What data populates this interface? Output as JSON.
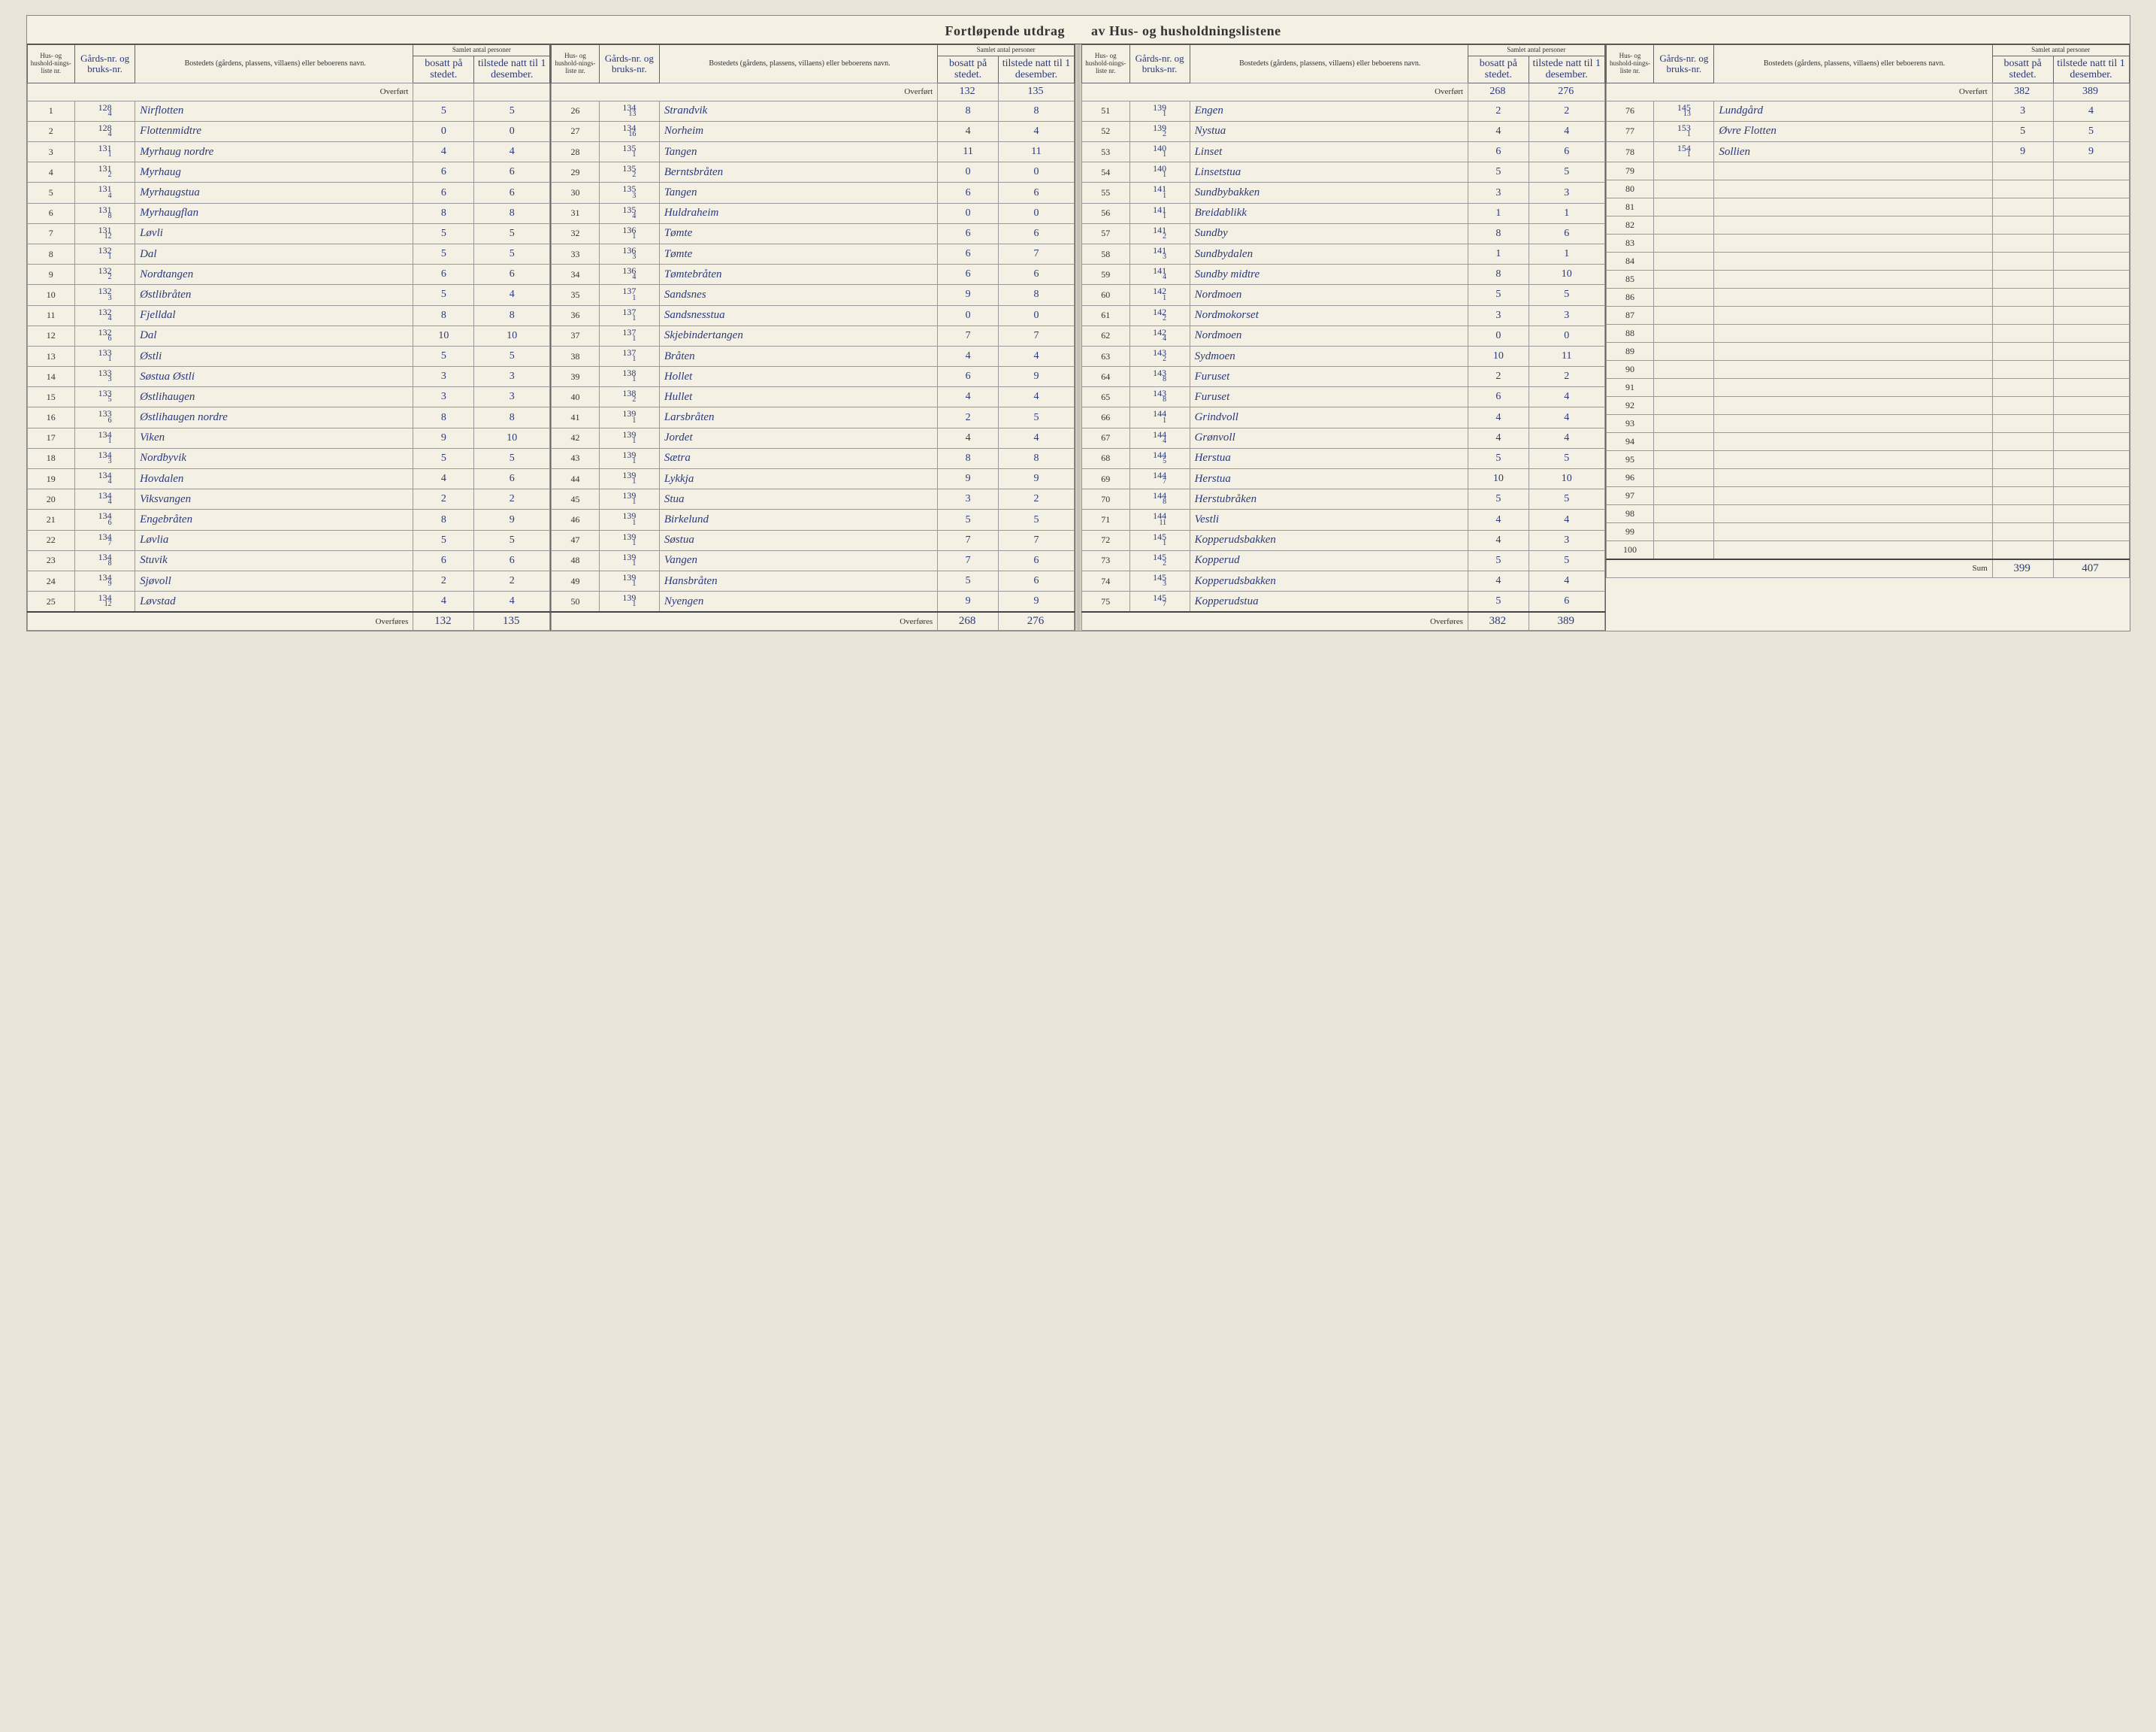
{
  "title_left": "Fortløpende utdrag",
  "title_right": "av Hus- og husholdningslistene",
  "headers": {
    "liste": "Hus- og hushold-nings-liste nr.",
    "gard": "Gårds-nr. og bruks-nr.",
    "bosted": "Bostedets (gårdens, plassens, villaens) eller beboerens navn.",
    "antal_group": "Samlet antal personer",
    "bosatt": "bosatt på stedet.",
    "tilstede": "tilstede natt til 1 desember."
  },
  "overfort_label": "Overført",
  "overfores_label": "Overføres",
  "sum_label": "Sum",
  "sections": [
    {
      "overfort": {
        "bosatt": "",
        "tilstede": ""
      },
      "rows": [
        {
          "n": "1",
          "g": "128",
          "b": "4",
          "name": "Nirflotten",
          "bo": "5",
          "ti": "5"
        },
        {
          "n": "2",
          "g": "128",
          "b": "4",
          "name": "Flottenmidtre",
          "bo": "0",
          "ti": "0"
        },
        {
          "n": "3",
          "g": "131",
          "b": "1",
          "name": "Myrhaug nordre",
          "bo": "4",
          "ti": "4"
        },
        {
          "n": "4",
          "g": "131",
          "b": "2",
          "name": "Myrhaug",
          "bo": "6",
          "ti": "6"
        },
        {
          "n": "5",
          "g": "131",
          "b": "4",
          "name": "Myrhaugstua",
          "bo": "6",
          "ti": "6"
        },
        {
          "n": "6",
          "g": "131",
          "b": "8",
          "name": "Myrhaugflan",
          "bo": "8",
          "ti": "8"
        },
        {
          "n": "7",
          "g": "131",
          "b": "12",
          "name": "Løvli",
          "bo": "5",
          "ti": "5"
        },
        {
          "n": "8",
          "g": "132",
          "b": "1",
          "name": "Dal",
          "bo": "5",
          "ti": "5"
        },
        {
          "n": "9",
          "g": "132",
          "b": "2",
          "name": "Nordtangen",
          "bo": "6",
          "ti": "6"
        },
        {
          "n": "10",
          "g": "132",
          "b": "3",
          "name": "Østlibråten",
          "bo": "5",
          "ti": "4"
        },
        {
          "n": "11",
          "g": "132",
          "b": "4",
          "name": "Fjelldal",
          "bo": "8",
          "ti": "8"
        },
        {
          "n": "12",
          "g": "132",
          "b": "6",
          "name": "Dal",
          "bo": "10",
          "ti": "10"
        },
        {
          "n": "13",
          "g": "133",
          "b": "1",
          "name": "Østli",
          "bo": "5",
          "ti": "5"
        },
        {
          "n": "14",
          "g": "133",
          "b": "3",
          "name": "Søstua Østli",
          "bo": "3",
          "ti": "3"
        },
        {
          "n": "15",
          "g": "133",
          "b": "5",
          "name": "Østlihaugen",
          "bo": "3",
          "ti": "3"
        },
        {
          "n": "16",
          "g": "133",
          "b": "6",
          "name": "Østlihaugen nordre",
          "bo": "8",
          "ti": "8"
        },
        {
          "n": "17",
          "g": "134",
          "b": "1",
          "name": "Viken",
          "bo": "9",
          "ti": "10"
        },
        {
          "n": "18",
          "g": "134",
          "b": "3",
          "name": "Nordbyvik",
          "bo": "5",
          "ti": "5"
        },
        {
          "n": "19",
          "g": "134",
          "b": "4",
          "name": "Hovdalen",
          "bo": "4",
          "ti": "6"
        },
        {
          "n": "20",
          "g": "134",
          "b": "4",
          "name": "Viksvangen",
          "bo": "2",
          "ti": "2"
        },
        {
          "n": "21",
          "g": "134",
          "b": "6",
          "name": "Engebråten",
          "bo": "8",
          "ti": "9"
        },
        {
          "n": "22",
          "g": "134",
          "b": "7",
          "name": "Løvlia",
          "bo": "5",
          "ti": "5"
        },
        {
          "n": "23",
          "g": "134",
          "b": "8",
          "name": "Stuvik",
          "bo": "6",
          "ti": "6"
        },
        {
          "n": "24",
          "g": "134",
          "b": "9",
          "name": "Sjøvoll",
          "bo": "2",
          "ti": "2"
        },
        {
          "n": "25",
          "g": "134",
          "b": "12",
          "name": "Løvstad",
          "bo": "4",
          "ti": "4"
        }
      ],
      "total": {
        "label": "Overføres",
        "bosatt": "132",
        "tilstede": "135"
      }
    },
    {
      "overfort": {
        "bosatt": "132",
        "tilstede": "135"
      },
      "rows": [
        {
          "n": "26",
          "g": "134",
          "b": "13",
          "name": "Strandvik",
          "bo": "8",
          "ti": "8"
        },
        {
          "n": "27",
          "g": "134",
          "b": "16",
          "name": "Norheim",
          "bo": "4",
          "ti": "4"
        },
        {
          "n": "28",
          "g": "135",
          "b": "1",
          "name": "Tangen",
          "bo": "11",
          "ti": "11"
        },
        {
          "n": "29",
          "g": "135",
          "b": "2",
          "name": "Berntsbråten",
          "bo": "0",
          "ti": "0"
        },
        {
          "n": "30",
          "g": "135",
          "b": "3",
          "name": "Tangen",
          "bo": "6",
          "ti": "6"
        },
        {
          "n": "31",
          "g": "135",
          "b": "4",
          "name": "Huldraheim",
          "bo": "0",
          "ti": "0"
        },
        {
          "n": "32",
          "g": "136",
          "b": "1",
          "name": "Tømte",
          "bo": "6",
          "ti": "6"
        },
        {
          "n": "33",
          "g": "136",
          "b": "3",
          "name": "Tømte",
          "bo": "6",
          "ti": "7"
        },
        {
          "n": "34",
          "g": "136",
          "b": "4",
          "name": "Tømtebråten",
          "bo": "6",
          "ti": "6"
        },
        {
          "n": "35",
          "g": "137",
          "b": "1",
          "name": "Sandsnes",
          "bo": "9",
          "ti": "8"
        },
        {
          "n": "36",
          "g": "137",
          "b": "1",
          "name": "Sandsnesstua",
          "bo": "0",
          "ti": "0"
        },
        {
          "n": "37",
          "g": "137",
          "b": "1",
          "name": "Skjebindertangen",
          "bo": "7",
          "ti": "7"
        },
        {
          "n": "38",
          "g": "137",
          "b": "1",
          "name": "Bråten",
          "bo": "4",
          "ti": "4"
        },
        {
          "n": "39",
          "g": "138",
          "b": "1",
          "name": "Hollet",
          "bo": "6",
          "ti": "9"
        },
        {
          "n": "40",
          "g": "138",
          "b": "2",
          "name": "Hullet",
          "bo": "4",
          "ti": "4"
        },
        {
          "n": "41",
          "g": "139",
          "b": "1",
          "name": "Larsbråten",
          "bo": "2",
          "ti": "5"
        },
        {
          "n": "42",
          "g": "139",
          "b": "1",
          "name": "Jordet",
          "bo": "4",
          "ti": "4"
        },
        {
          "n": "43",
          "g": "139",
          "b": "1",
          "name": "Sætra",
          "bo": "8",
          "ti": "8"
        },
        {
          "n": "44",
          "g": "139",
          "b": "1",
          "name": "Lykkja",
          "bo": "9",
          "ti": "9"
        },
        {
          "n": "45",
          "g": "139",
          "b": "1",
          "name": "Stua",
          "bo": "3",
          "ti": "2"
        },
        {
          "n": "46",
          "g": "139",
          "b": "1",
          "name": "Birkelund",
          "bo": "5",
          "ti": "5"
        },
        {
          "n": "47",
          "g": "139",
          "b": "1",
          "name": "Søstua",
          "bo": "7",
          "ti": "7"
        },
        {
          "n": "48",
          "g": "139",
          "b": "1",
          "name": "Vangen",
          "bo": "7",
          "ti": "6"
        },
        {
          "n": "49",
          "g": "139",
          "b": "1",
          "name": "Hansbråten",
          "bo": "5",
          "ti": "6"
        },
        {
          "n": "50",
          "g": "139",
          "b": "1",
          "name": "Nyengen",
          "bo": "9",
          "ti": "9"
        }
      ],
      "total": {
        "label": "Overføres",
        "bosatt": "268",
        "tilstede": "276"
      }
    },
    {
      "overfort": {
        "bosatt": "268",
        "tilstede": "276"
      },
      "rows": [
        {
          "n": "51",
          "g": "139",
          "b": "1",
          "name": "Engen",
          "bo": "2",
          "ti": "2"
        },
        {
          "n": "52",
          "g": "139",
          "b": "2",
          "name": "Nystua",
          "bo": "4",
          "ti": "4"
        },
        {
          "n": "53",
          "g": "140",
          "b": "1",
          "name": "Linset",
          "bo": "6",
          "ti": "6"
        },
        {
          "n": "54",
          "g": "140",
          "b": "1",
          "name": "Linsetstua",
          "bo": "5",
          "ti": "5"
        },
        {
          "n": "55",
          "g": "141",
          "b": "1",
          "name": "Sundbybakken",
          "bo": "3",
          "ti": "3"
        },
        {
          "n": "56",
          "g": "141",
          "b": "1",
          "name": "Breidablikk",
          "bo": "1",
          "ti": "1"
        },
        {
          "n": "57",
          "g": "141",
          "b": "2",
          "name": "Sundby",
          "bo": "8",
          "ti": "6"
        },
        {
          "n": "58",
          "g": "141",
          "b": "3",
          "name": "Sundbydalen",
          "bo": "1",
          "ti": "1"
        },
        {
          "n": "59",
          "g": "141",
          "b": "4",
          "name": "Sundby midtre",
          "bo": "8",
          "ti": "10"
        },
        {
          "n": "60",
          "g": "142",
          "b": "1",
          "name": "Nordmoen",
          "bo": "5",
          "ti": "5"
        },
        {
          "n": "61",
          "g": "142",
          "b": "2",
          "name": "Nordmokorset",
          "bo": "3",
          "ti": "3"
        },
        {
          "n": "62",
          "g": "142",
          "b": "4",
          "name": "Nordmoen",
          "bo": "0",
          "ti": "0"
        },
        {
          "n": "63",
          "g": "143",
          "b": "2",
          "name": "Sydmoen",
          "bo": "10",
          "ti": "11"
        },
        {
          "n": "64",
          "g": "143",
          "b": "8",
          "name": "Furuset",
          "bo": "2",
          "ti": "2"
        },
        {
          "n": "65",
          "g": "143",
          "b": "8",
          "name": "Furuset",
          "bo": "6",
          "ti": "4"
        },
        {
          "n": "66",
          "g": "144",
          "b": "1",
          "name": "Grindvoll",
          "bo": "4",
          "ti": "4"
        },
        {
          "n": "67",
          "g": "144",
          "b": "4",
          "name": "Grønvoll",
          "bo": "4",
          "ti": "4"
        },
        {
          "n": "68",
          "g": "144",
          "b": "5",
          "name": "Herstua",
          "bo": "5",
          "ti": "5"
        },
        {
          "n": "69",
          "g": "144",
          "b": "7",
          "name": "Herstua",
          "bo": "10",
          "ti": "10"
        },
        {
          "n": "70",
          "g": "144",
          "b": "8",
          "name": "Herstubråken",
          "bo": "5",
          "ti": "5"
        },
        {
          "n": "71",
          "g": "144",
          "b": "11",
          "name": "Vestli",
          "bo": "4",
          "ti": "4"
        },
        {
          "n": "72",
          "g": "145",
          "b": "1",
          "name": "Kopperudsbakken",
          "bo": "4",
          "ti": "3"
        },
        {
          "n": "73",
          "g": "145",
          "b": "2",
          "name": "Kopperud",
          "bo": "5",
          "ti": "5"
        },
        {
          "n": "74",
          "g": "145",
          "b": "3",
          "name": "Kopperudsbakken",
          "bo": "4",
          "ti": "4"
        },
        {
          "n": "75",
          "g": "145",
          "b": "7",
          "name": "Kopperudstua",
          "bo": "5",
          "ti": "6"
        }
      ],
      "total": {
        "label": "Overføres",
        "bosatt": "382",
        "tilstede": "389"
      }
    },
    {
      "overfort": {
        "bosatt": "382",
        "tilstede": "389"
      },
      "rows": [
        {
          "n": "76",
          "g": "145",
          "b": "13",
          "name": "Lundgård",
          "bo": "3",
          "ti": "4"
        },
        {
          "n": "77",
          "g": "153",
          "b": "1",
          "name": "Øvre Flotten",
          "bo": "5",
          "ti": "5"
        },
        {
          "n": "78",
          "g": "154",
          "b": "1",
          "name": "Sollien",
          "bo": "9",
          "ti": "9"
        },
        {
          "n": "79",
          "g": "",
          "b": "",
          "name": "",
          "bo": "",
          "ti": ""
        },
        {
          "n": "80",
          "g": "",
          "b": "",
          "name": "",
          "bo": "",
          "ti": ""
        },
        {
          "n": "81",
          "g": "",
          "b": "",
          "name": "",
          "bo": "",
          "ti": ""
        },
        {
          "n": "82",
          "g": "",
          "b": "",
          "name": "",
          "bo": "",
          "ti": ""
        },
        {
          "n": "83",
          "g": "",
          "b": "",
          "name": "",
          "bo": "",
          "ti": ""
        },
        {
          "n": "84",
          "g": "",
          "b": "",
          "name": "",
          "bo": "",
          "ti": ""
        },
        {
          "n": "85",
          "g": "",
          "b": "",
          "name": "",
          "bo": "",
          "ti": ""
        },
        {
          "n": "86",
          "g": "",
          "b": "",
          "name": "",
          "bo": "",
          "ti": ""
        },
        {
          "n": "87",
          "g": "",
          "b": "",
          "name": "",
          "bo": "",
          "ti": ""
        },
        {
          "n": "88",
          "g": "",
          "b": "",
          "name": "",
          "bo": "",
          "ti": ""
        },
        {
          "n": "89",
          "g": "",
          "b": "",
          "name": "",
          "bo": "",
          "ti": ""
        },
        {
          "n": "90",
          "g": "",
          "b": "",
          "name": "",
          "bo": "",
          "ti": ""
        },
        {
          "n": "91",
          "g": "",
          "b": "",
          "name": "",
          "bo": "",
          "ti": ""
        },
        {
          "n": "92",
          "g": "",
          "b": "",
          "name": "",
          "bo": "",
          "ti": ""
        },
        {
          "n": "93",
          "g": "",
          "b": "",
          "name": "",
          "bo": "",
          "ti": ""
        },
        {
          "n": "94",
          "g": "",
          "b": "",
          "name": "",
          "bo": "",
          "ti": ""
        },
        {
          "n": "95",
          "g": "",
          "b": "",
          "name": "",
          "bo": "",
          "ti": ""
        },
        {
          "n": "96",
          "g": "",
          "b": "",
          "name": "",
          "bo": "",
          "ti": ""
        },
        {
          "n": "97",
          "g": "",
          "b": "",
          "name": "",
          "bo": "",
          "ti": ""
        },
        {
          "n": "98",
          "g": "",
          "b": "",
          "name": "",
          "bo": "",
          "ti": ""
        },
        {
          "n": "99",
          "g": "",
          "b": "",
          "name": "",
          "bo": "",
          "ti": ""
        },
        {
          "n": "100",
          "g": "",
          "b": "",
          "name": "",
          "bo": "",
          "ti": ""
        }
      ],
      "total": {
        "label": "Sum",
        "bosatt": "399",
        "tilstede": "407"
      }
    }
  ],
  "colors": {
    "paper": "#f4f0e4",
    "ink_print": "#333333",
    "ink_hand": "#2a3a7a",
    "border": "#666666"
  }
}
